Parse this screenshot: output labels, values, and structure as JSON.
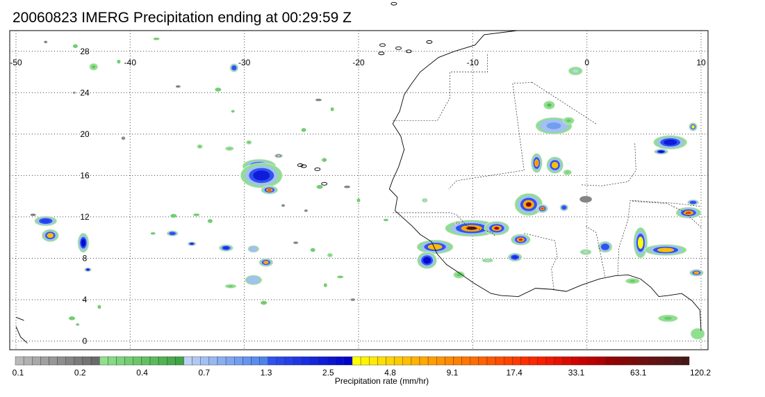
{
  "title": "20060823 IMERG Precipitation ending at 00:29:59 Z",
  "map": {
    "lon_labels": [
      "-50",
      "-40",
      "-30",
      "-20",
      "-10",
      "0",
      "10"
    ],
    "lat_labels": [
      "28",
      "24",
      "20",
      "16",
      "12",
      "8",
      "4",
      "0"
    ],
    "lon_range": [
      -50,
      10
    ],
    "lat_range": [
      -0.5,
      30
    ],
    "coast_color": "#000000",
    "grid_color": "#444444"
  },
  "colorbar": {
    "label": "Precipitation rate (mm/hr)",
    "tick_labels": [
      "0.1",
      "0.2",
      "0.4",
      "0.7",
      "1.3",
      "2.5",
      "4.8",
      "9.1",
      "17.4",
      "33.1",
      "63.1",
      "120.2"
    ],
    "swatches": [
      "#b9b9b9",
      "#b1b1b1",
      "#a8a8a8",
      "#a0a0a0",
      "#979797",
      "#8e8e8e",
      "#858585",
      "#7c7c7c",
      "#747474",
      "#6a6a6a",
      "#8ee08c",
      "#85da83",
      "#7cd47b",
      "#73cd72",
      "#6ac76a",
      "#62c062",
      "#5aba5a",
      "#51b352",
      "#48ab4b",
      "#40a444",
      "#bcd2f5",
      "#b0c9f4",
      "#a3c0f3",
      "#97b8f2",
      "#8aaff1",
      "#7ea7f0",
      "#729ef0",
      "#6595ef",
      "#598cee",
      "#4c83ed",
      "#2f52f0",
      "#2a49ee",
      "#2440ea",
      "#1e37e6",
      "#192ee2",
      "#1425de",
      "#0f1cd9",
      "#0a14d4",
      "#050bcf",
      "#0003ca",
      "#ffff00",
      "#fff400",
      "#ffea00",
      "#ffdf00",
      "#ffd400",
      "#ffc900",
      "#ffbe00",
      "#ffb300",
      "#ffa800",
      "#ff9d00",
      "#ff9400",
      "#ff8a00",
      "#ff8000",
      "#ff7600",
      "#ff6c00",
      "#ff6200",
      "#ff5800",
      "#ff4e00",
      "#ff4400",
      "#ff3a00",
      "#ff2e00",
      "#ff2600",
      "#f81f00",
      "#f01800",
      "#e71100",
      "#dd0a00",
      "#d30300",
      "#c80000",
      "#bd0000",
      "#b20000",
      "#9a0000",
      "#900303",
      "#860707",
      "#7c0a0a",
      "#720e0e",
      "#691010",
      "#601313",
      "#581414",
      "#501616",
      "#481717"
    ]
  }
}
